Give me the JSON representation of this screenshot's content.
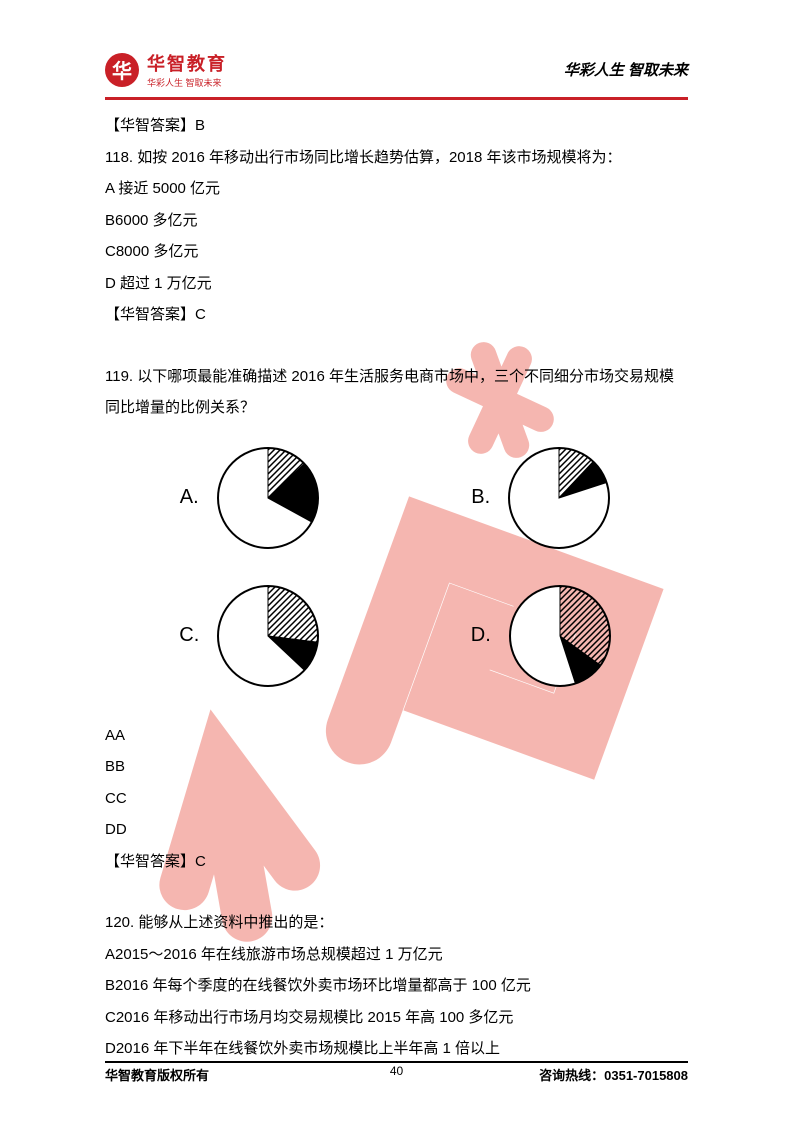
{
  "header": {
    "logo_char": "华",
    "logo_title": "华智教育",
    "logo_sub": "华彩人生 智取未来",
    "right_text": "华彩人生 智取未来"
  },
  "q118": {
    "answer_prev": "【华智答案】B",
    "stem": "118. 如按 2016 年移动出行市场同比增长趋势估算，2018 年该市场规模将为：",
    "optA": "A 接近 5000 亿元",
    "optB": "B6000 多亿元",
    "optC": "C8000 多亿元",
    "optD": "D 超过 1 万亿元",
    "answer": "【华智答案】C"
  },
  "q119": {
    "stem": "119. 以下哪项最能准确描述 2016 年生活服务电商市场中，三个不同细分市场交易规模同比增量的比例关系？",
    "labelA": "A.",
    "labelB": "B.",
    "labelC": "C.",
    "labelD": "D.",
    "optAA": "AA",
    "optBB": "BB",
    "optCC": "CC",
    "optDD": "DD",
    "answer": "【华智答案】C",
    "pie_style": {
      "radius": 50,
      "stroke": "#000000",
      "stroke_width": 2,
      "fill_white": "#ffffff",
      "fill_black": "#000000",
      "hatch_spacing": 6
    },
    "pieA": {
      "white": 0.67,
      "hatch": 0.13,
      "black": 0.2
    },
    "pieB": {
      "white": 0.8,
      "hatch": 0.12,
      "black": 0.08
    },
    "pieC": {
      "white": 0.63,
      "hatch": 0.27,
      "black": 0.1
    },
    "pieD": {
      "white": 0.55,
      "hatch": 0.35,
      "black": 0.1
    }
  },
  "q120": {
    "stem": "120. 能够从上述资料中推出的是：",
    "optA": "A2015～2016 年在线旅游市场总规模超过 1 万亿元",
    "optB": "B2016 年每个季度的在线餐饮外卖市场环比增量都高于 100 亿元",
    "optC": "C2016 年移动出行市场月均交易规模比 2015 年高 100 多亿元",
    "optD": "D2016 年下半年在线餐饮外卖市场规模比上半年高 1 倍以上"
  },
  "footer": {
    "left": "华智教育版权所有",
    "right": "咨询热线：0351-7015808",
    "page": "40"
  },
  "watermark_color": "#e74c3c"
}
